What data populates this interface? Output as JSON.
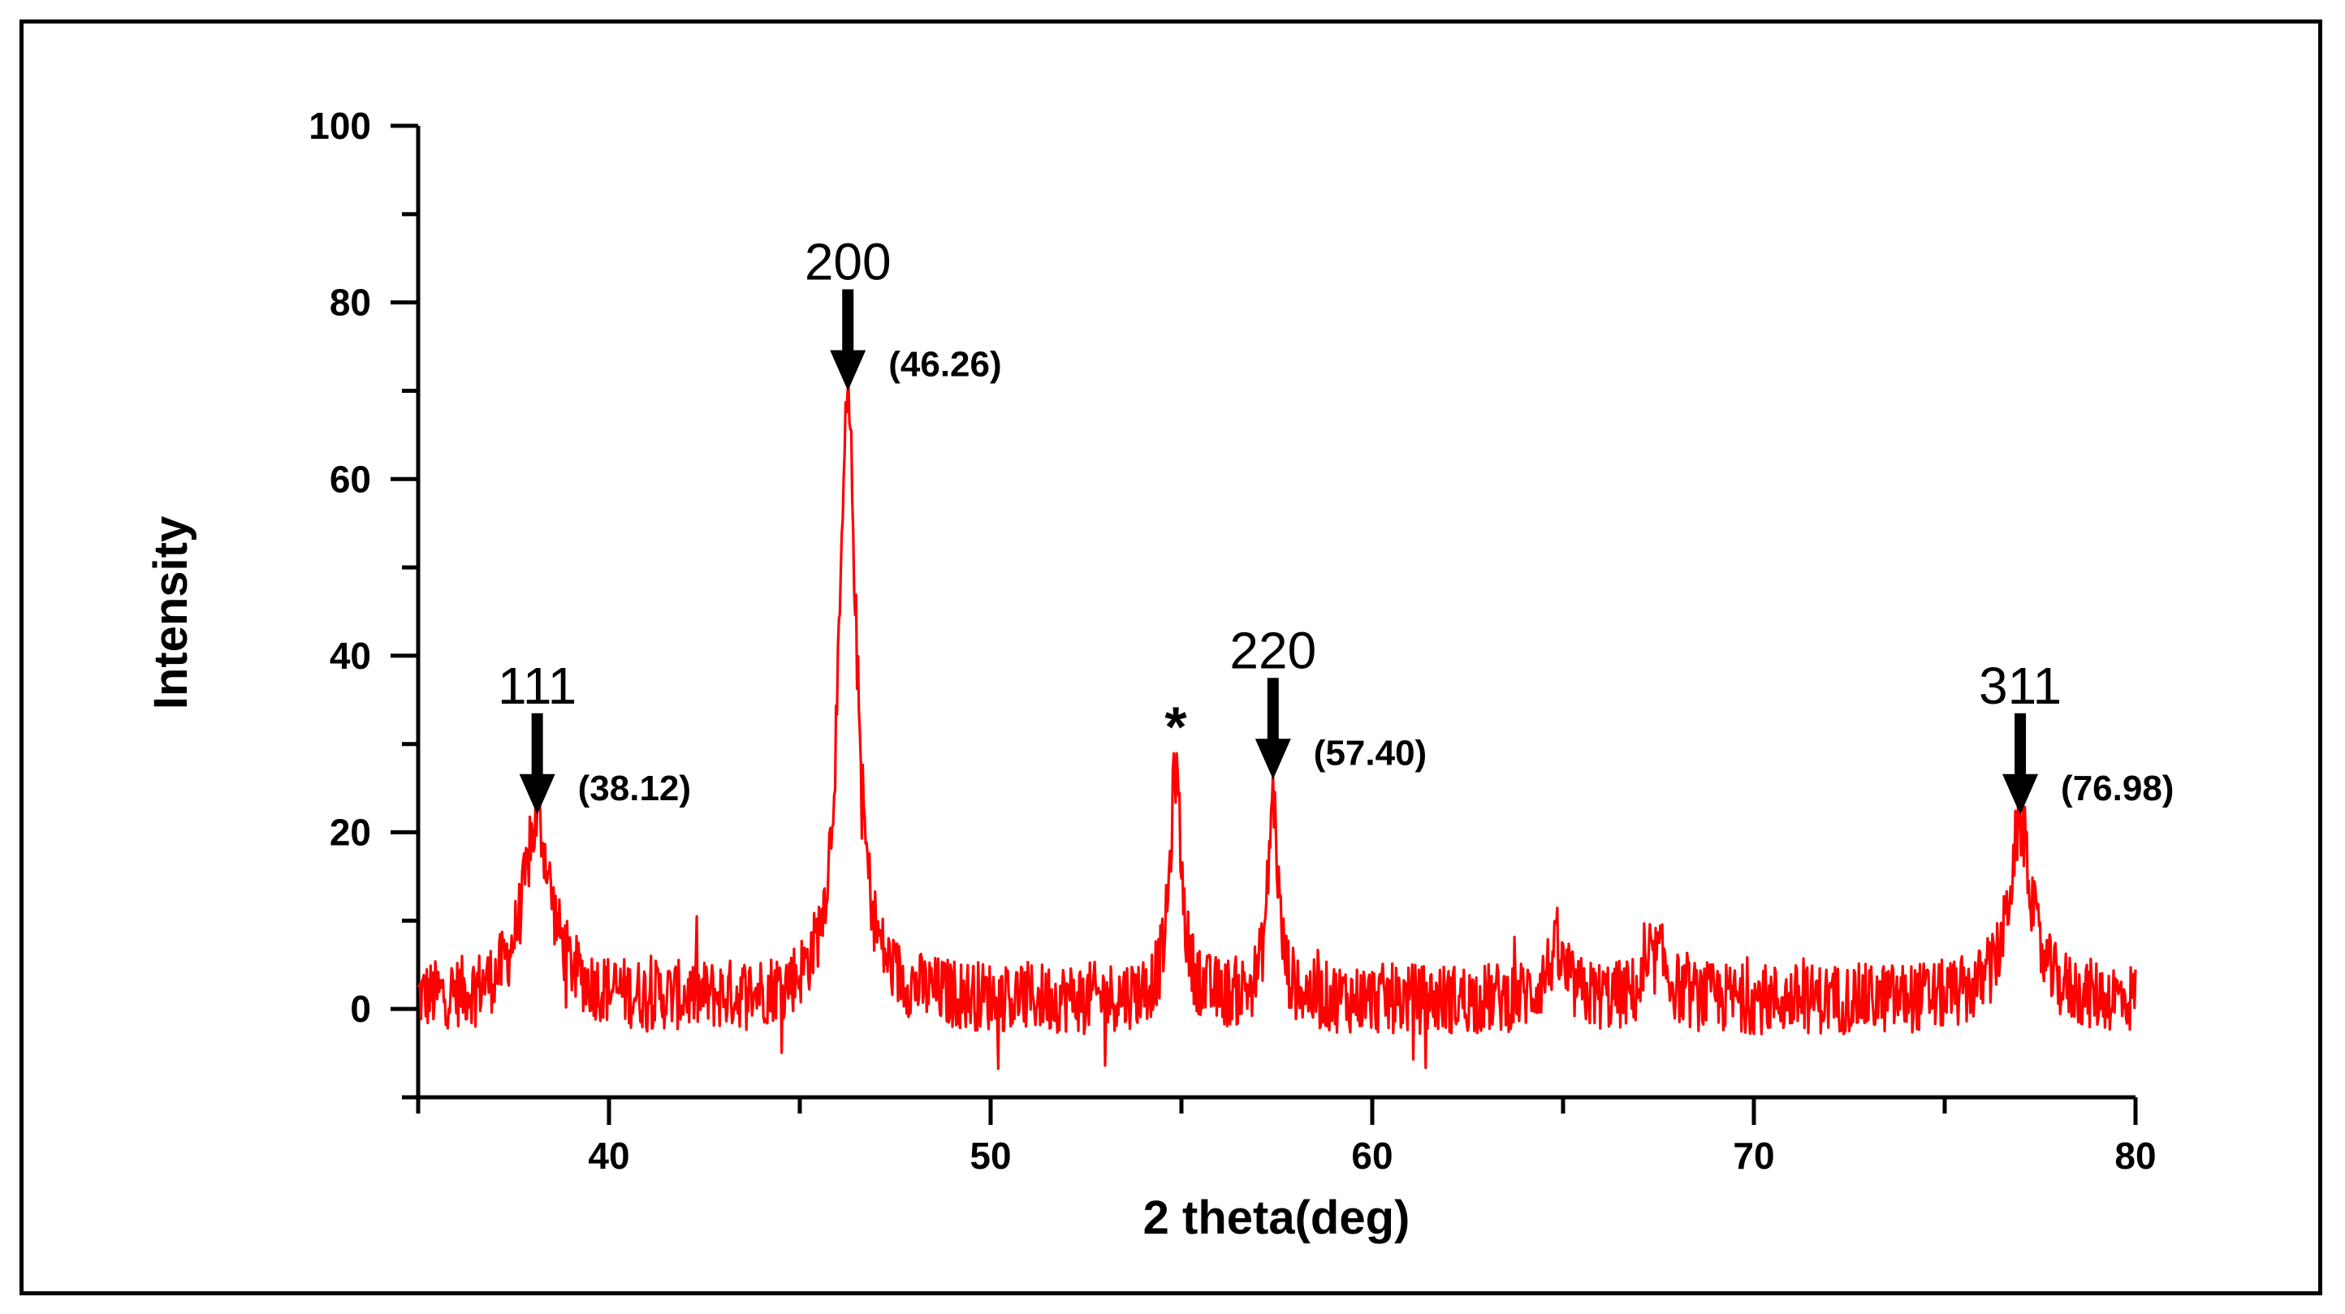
{
  "chart_data": {
    "type": "line",
    "xlabel": "2 theta(deg)",
    "ylabel": "Intensity",
    "xlim": [
      35,
      80
    ],
    "ylim": [
      -10,
      100
    ],
    "x_ticks": [
      40,
      50,
      60,
      70,
      80
    ],
    "y_ticks": [
      0,
      20,
      40,
      60,
      80,
      100
    ],
    "grid": false,
    "series": [
      {
        "color": "#ff0000",
        "baseline": 1,
        "noise_amplitude": 4,
        "peaks": [
          {
            "center": 38.12,
            "height": 20,
            "width": 0.45
          },
          {
            "center": 46.26,
            "height": 67,
            "width": 0.28
          },
          {
            "center": 54.85,
            "height": 26,
            "width": 0.18
          },
          {
            "center": 57.4,
            "height": 23,
            "width": 0.16
          },
          {
            "center": 64.8,
            "height": 5,
            "width": 0.3
          },
          {
            "center": 67.5,
            "height": 5,
            "width": 0.3
          },
          {
            "center": 76.98,
            "height": 20,
            "width": 0.35
          }
        ]
      }
    ],
    "annotations": [
      {
        "hkl": "111",
        "position": "(38.12)",
        "x": 38.12,
        "y": 22
      },
      {
        "hkl": "200",
        "position": "(46.26)",
        "x": 46.26,
        "y": 70
      },
      {
        "hkl": "*",
        "position": "",
        "x": 54.85,
        "y": 29
      },
      {
        "hkl": "220",
        "position": "(57.40)",
        "x": 57.4,
        "y": 26
      },
      {
        "hkl": "311",
        "position": "(76.98)",
        "x": 76.98,
        "y": 22
      }
    ]
  }
}
